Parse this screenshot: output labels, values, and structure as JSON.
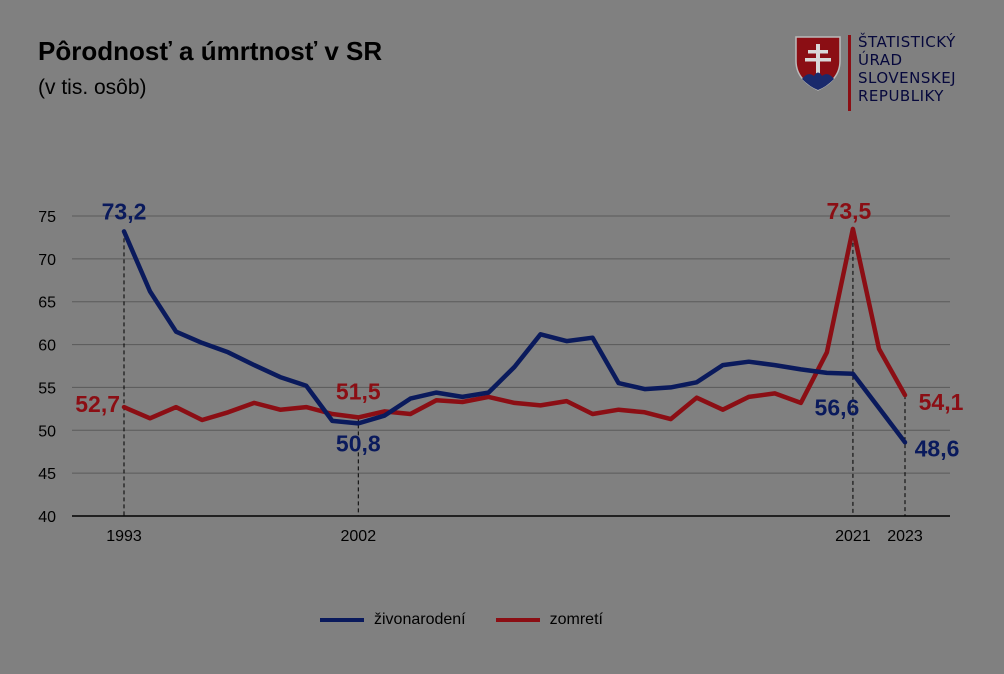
{
  "title": "Pôrodnosť a úmrtnosť v SR",
  "subtitle": "(v tis. osôb)",
  "logo": {
    "lines": [
      "ŠTATISTICKÝ",
      "ÚRAD",
      "SLOVENSKEJ",
      "REPUBLIKY"
    ],
    "colors": {
      "shield": "#8b0e14",
      "text": "#06083c",
      "bar": "#8b0e14"
    }
  },
  "chart_data": {
    "type": "line",
    "x": [
      1993,
      1994,
      1995,
      1996,
      1997,
      1998,
      1999,
      2000,
      2001,
      2002,
      2003,
      2004,
      2005,
      2006,
      2007,
      2008,
      2009,
      2010,
      2011,
      2012,
      2013,
      2014,
      2015,
      2016,
      2017,
      2018,
      2019,
      2020,
      2021,
      2022,
      2023
    ],
    "xticks": [
      "1993",
      "2002",
      "2021",
      "2023"
    ],
    "ylim": [
      40,
      75
    ],
    "yticks": [
      "40",
      "45",
      "50",
      "55",
      "60",
      "65",
      "70",
      "75"
    ],
    "grid": true,
    "legend_position": "bottom",
    "series": [
      {
        "name": "živonarodení",
        "color": "#0a1a5c",
        "values": [
          73.2,
          66.2,
          61.5,
          60.2,
          59.1,
          57.6,
          56.2,
          55.2,
          51.1,
          50.8,
          51.7,
          53.7,
          54.4,
          53.9,
          54.4,
          57.4,
          61.2,
          60.4,
          60.8,
          55.5,
          54.8,
          55.0,
          55.6,
          57.6,
          58.0,
          57.6,
          57.1,
          56.7,
          56.6,
          52.6,
          48.6
        ]
      },
      {
        "name": "zomretí",
        "color": "#8b0e14",
        "values": [
          52.7,
          51.4,
          52.7,
          51.2,
          52.1,
          53.2,
          52.4,
          52.7,
          51.9,
          51.5,
          52.2,
          51.9,
          53.5,
          53.3,
          53.9,
          53.2,
          52.9,
          53.4,
          51.9,
          52.4,
          52.1,
          51.3,
          53.8,
          52.4,
          53.9,
          54.3,
          53.2,
          59.1,
          73.5,
          59.5,
          54.1
        ]
      }
    ],
    "annotations": [
      {
        "series": 0,
        "year": 1993,
        "text": "73,2",
        "pos": "above",
        "dx": 0,
        "dy": -12
      },
      {
        "series": 1,
        "year": 1993,
        "text": "52,7",
        "pos": "left",
        "dx": -4,
        "dy": -1
      },
      {
        "series": 1,
        "year": 2002,
        "text": "51,5",
        "pos": "above",
        "dx": 0,
        "dy": -18
      },
      {
        "series": 0,
        "year": 2002,
        "text": "50,8",
        "pos": "below",
        "dx": 0,
        "dy": 28
      },
      {
        "series": 1,
        "year": 2021,
        "text": "73,5",
        "pos": "above",
        "dx": -4,
        "dy": -10
      },
      {
        "series": 0,
        "year": 2021,
        "text": "56,6",
        "pos": "below",
        "dx": -16,
        "dy": 42
      },
      {
        "series": 1,
        "year": 2023,
        "text": "54,1",
        "pos": "right",
        "dx": 36,
        "dy": 15
      },
      {
        "series": 0,
        "year": 2023,
        "text": "48,6",
        "pos": "right",
        "dx": 32,
        "dy": 14
      }
    ],
    "drop_lines": [
      1993,
      2002,
      2021,
      2023
    ]
  }
}
